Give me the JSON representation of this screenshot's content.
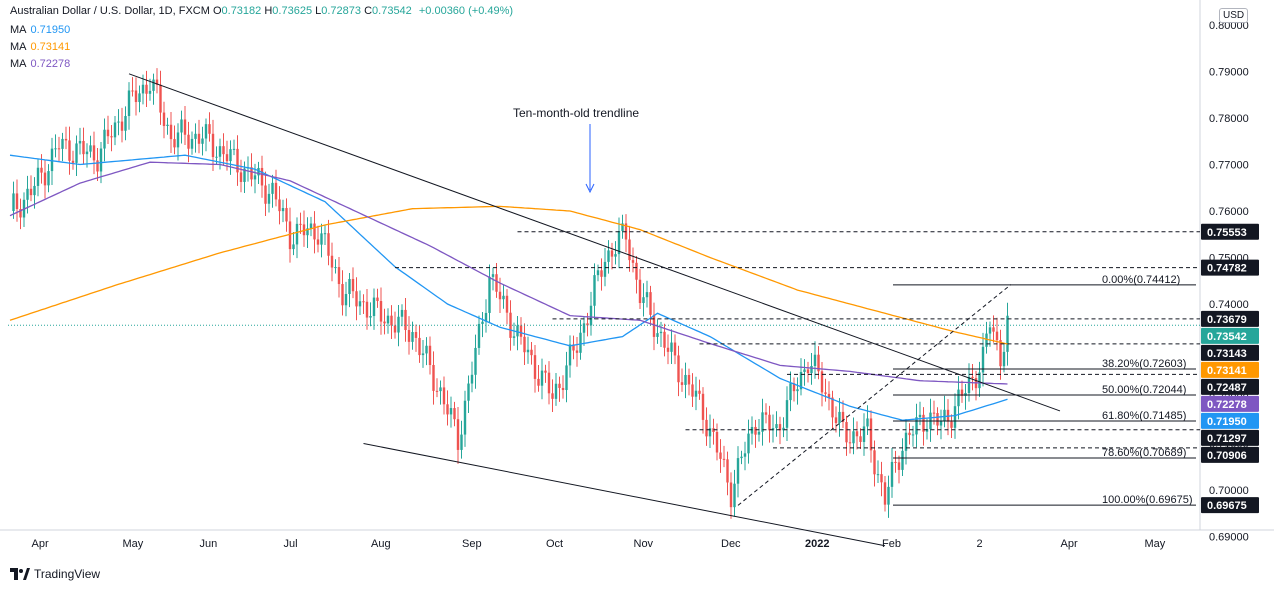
{
  "header": {
    "symbol": "Australian Dollar / U.S. Dollar, 1D, FXCM",
    "ohlc": [
      {
        "label": "O",
        "value": "0.73182"
      },
      {
        "label": "H",
        "value": "0.73625"
      },
      {
        "label": "L",
        "value": "0.72873"
      },
      {
        "label": "C",
        "value": "0.73542"
      }
    ],
    "change": "+0.00360 (+0.49%)",
    "moving_averages": [
      {
        "label": "MA",
        "value": "0.71950",
        "color": "#2196f3"
      },
      {
        "label": "MA",
        "value": "0.73141",
        "color": "#ff9800"
      },
      {
        "label": "MA",
        "value": "0.72278",
        "color": "#7e57c2"
      }
    ]
  },
  "brand": "TradingView",
  "currency": "USD",
  "chart_data": {
    "type": "candlestick",
    "title": "",
    "x_tick_labels": [
      "Apr",
      "May",
      "Jun",
      "Jul",
      "Aug",
      "Sep",
      "Oct",
      "Nov",
      "Dec",
      "2022",
      "Feb",
      "2",
      "Apr",
      "May"
    ],
    "y_tick_labels": [
      "0.69000",
      "0.70000",
      "0.71000",
      "0.72000",
      "0.73000",
      "0.74000",
      "0.75000",
      "0.76000",
      "0.77000",
      "0.78000",
      "0.79000",
      "0.80000"
    ],
    "ylim": [
      0.6875,
      0.8015
    ],
    "grid": false,
    "colors": {
      "up": "#26a69a",
      "down": "#ef5350"
    },
    "price_anchors": [
      {
        "i": 0,
        "v": 0.76
      },
      {
        "i": 6,
        "v": 0.764
      },
      {
        "i": 14,
        "v": 0.774
      },
      {
        "i": 25,
        "v": 0.772
      },
      {
        "i": 35,
        "v": 0.784
      },
      {
        "i": 40,
        "v": 0.788
      },
      {
        "i": 46,
        "v": 0.776
      },
      {
        "i": 55,
        "v": 0.776
      },
      {
        "i": 65,
        "v": 0.77
      },
      {
        "i": 75,
        "v": 0.764
      },
      {
        "i": 80,
        "v": 0.755
      },
      {
        "i": 88,
        "v": 0.756
      },
      {
        "i": 95,
        "v": 0.743
      },
      {
        "i": 105,
        "v": 0.738
      },
      {
        "i": 115,
        "v": 0.734
      },
      {
        "i": 123,
        "v": 0.721
      },
      {
        "i": 128,
        "v": 0.711
      },
      {
        "i": 134,
        "v": 0.733
      },
      {
        "i": 137,
        "v": 0.746
      },
      {
        "i": 145,
        "v": 0.733
      },
      {
        "i": 155,
        "v": 0.72
      },
      {
        "i": 162,
        "v": 0.731
      },
      {
        "i": 170,
        "v": 0.75
      },
      {
        "i": 176,
        "v": 0.755
      },
      {
        "i": 180,
        "v": 0.742
      },
      {
        "i": 188,
        "v": 0.73
      },
      {
        "i": 198,
        "v": 0.717
      },
      {
        "i": 206,
        "v": 0.7
      },
      {
        "i": 213,
        "v": 0.715
      },
      {
        "i": 219,
        "v": 0.713
      },
      {
        "i": 228,
        "v": 0.728
      },
      {
        "i": 232,
        "v": 0.723
      },
      {
        "i": 238,
        "v": 0.712
      },
      {
        "i": 245,
        "v": 0.712
      },
      {
        "i": 250,
        "v": 0.698
      },
      {
        "i": 255,
        "v": 0.71
      },
      {
        "i": 262,
        "v": 0.716
      },
      {
        "i": 266,
        "v": 0.714
      },
      {
        "i": 272,
        "v": 0.72
      },
      {
        "i": 278,
        "v": 0.728
      },
      {
        "i": 280,
        "v": 0.736
      },
      {
        "i": 283,
        "v": 0.729
      },
      {
        "i": 285,
        "v": 0.7354
      }
    ],
    "moving_averages": [
      {
        "name": "MA",
        "color": "#2196f3",
        "anchors": [
          {
            "i": 0,
            "v": 0.772
          },
          {
            "i": 20,
            "v": 0.77
          },
          {
            "i": 50,
            "v": 0.772
          },
          {
            "i": 70,
            "v": 0.769
          },
          {
            "i": 90,
            "v": 0.762
          },
          {
            "i": 110,
            "v": 0.748
          },
          {
            "i": 125,
            "v": 0.74
          },
          {
            "i": 140,
            "v": 0.735
          },
          {
            "i": 160,
            "v": 0.731
          },
          {
            "i": 175,
            "v": 0.733
          },
          {
            "i": 185,
            "v": 0.738
          },
          {
            "i": 200,
            "v": 0.733
          },
          {
            "i": 220,
            "v": 0.724
          },
          {
            "i": 240,
            "v": 0.718
          },
          {
            "i": 255,
            "v": 0.715
          },
          {
            "i": 270,
            "v": 0.716
          },
          {
            "i": 285,
            "v": 0.7195
          }
        ]
      },
      {
        "name": "MA",
        "color": "#ff9800",
        "anchors": [
          {
            "i": 0,
            "v": 0.7365
          },
          {
            "i": 30,
            "v": 0.744
          },
          {
            "i": 60,
            "v": 0.751
          },
          {
            "i": 90,
            "v": 0.757
          },
          {
            "i": 115,
            "v": 0.7605
          },
          {
            "i": 140,
            "v": 0.761
          },
          {
            "i": 160,
            "v": 0.76
          },
          {
            "i": 180,
            "v": 0.756
          },
          {
            "i": 200,
            "v": 0.75
          },
          {
            "i": 225,
            "v": 0.743
          },
          {
            "i": 250,
            "v": 0.738
          },
          {
            "i": 270,
            "v": 0.734
          },
          {
            "i": 285,
            "v": 0.7314
          }
        ]
      },
      {
        "name": "MA",
        "color": "#7e57c2",
        "anchors": [
          {
            "i": 0,
            "v": 0.759
          },
          {
            "i": 20,
            "v": 0.766
          },
          {
            "i": 40,
            "v": 0.7705
          },
          {
            "i": 60,
            "v": 0.77
          },
          {
            "i": 80,
            "v": 0.7665
          },
          {
            "i": 100,
            "v": 0.7595
          },
          {
            "i": 120,
            "v": 0.7525
          },
          {
            "i": 140,
            "v": 0.7445
          },
          {
            "i": 160,
            "v": 0.7375
          },
          {
            "i": 180,
            "v": 0.7365
          },
          {
            "i": 200,
            "v": 0.7315
          },
          {
            "i": 220,
            "v": 0.7268
          },
          {
            "i": 240,
            "v": 0.7255
          },
          {
            "i": 260,
            "v": 0.7235
          },
          {
            "i": 285,
            "v": 0.7228
          }
        ]
      }
    ],
    "trendlines": [
      {
        "from": {
          "i": 34,
          "v": 0.7895
        },
        "to": {
          "i": 300,
          "v": 0.717
        }
      },
      {
        "from": {
          "i": 101,
          "v": 0.71
        },
        "to": {
          "i": 250,
          "v": 0.688
        }
      },
      {
        "from": {
          "i": 208,
          "v": 0.6967
        },
        "to": {
          "i": 286,
          "v": 0.7442
        }
      }
    ],
    "trendline_annotation": "Ten-month-old trendline",
    "horizontal_levels": [
      {
        "value": 0.75553,
        "label": "0.75553",
        "from_i": 145
      },
      {
        "value": 0.74782,
        "label": "0.74782",
        "from_i": 110
      },
      {
        "value": 0.73679,
        "label": "0.73679",
        "from_i": 155
      },
      {
        "value": 0.73143,
        "label": "0.73143",
        "from_i": 197
      },
      {
        "value": 0.72487,
        "label": "0.72487",
        "from_i": 222
      },
      {
        "value": 0.71297,
        "label": "0.71297",
        "from_i": 193
      },
      {
        "value": 0.70906,
        "label": "0.70906",
        "from_i": 218
      }
    ],
    "fibonacci": [
      {
        "level": "0.00%",
        "value": 0.74412
      },
      {
        "level": "38.20%",
        "value": 0.72603
      },
      {
        "level": "50.00%",
        "value": 0.72044
      },
      {
        "level": "61.80%",
        "value": 0.71485
      },
      {
        "level": "78.60%",
        "value": 0.70689
      },
      {
        "level": "100.00%",
        "value": 0.69675
      }
    ],
    "price_tags": [
      {
        "value": 0.75553,
        "label": "0.75553",
        "color": "#131722"
      },
      {
        "value": 0.74782,
        "label": "0.74782",
        "color": "#131722"
      },
      {
        "value": 0.73679,
        "label": "0.73679",
        "color": "#131722"
      },
      {
        "value": 0.73542,
        "label": "0.73542",
        "color": "#26a69a"
      },
      {
        "value": 0.73143,
        "label": "0.73143",
        "color": "#131722"
      },
      {
        "value": 0.73141,
        "label": "0.73141",
        "color": "#ff9800"
      },
      {
        "value": 0.72487,
        "label": "0.72487",
        "color": "#131722"
      },
      {
        "value": 0.72278,
        "label": "0.72278",
        "color": "#7e57c2"
      },
      {
        "value": 0.7195,
        "label": "0.71950",
        "color": "#2196f3"
      },
      {
        "value": 0.71297,
        "label": "0.71297",
        "color": "#131722"
      },
      {
        "value": 0.70906,
        "label": "0.70906",
        "color": "#131722"
      },
      {
        "value": 0.69675,
        "label": "0.69675",
        "color": "#131722"
      }
    ]
  }
}
